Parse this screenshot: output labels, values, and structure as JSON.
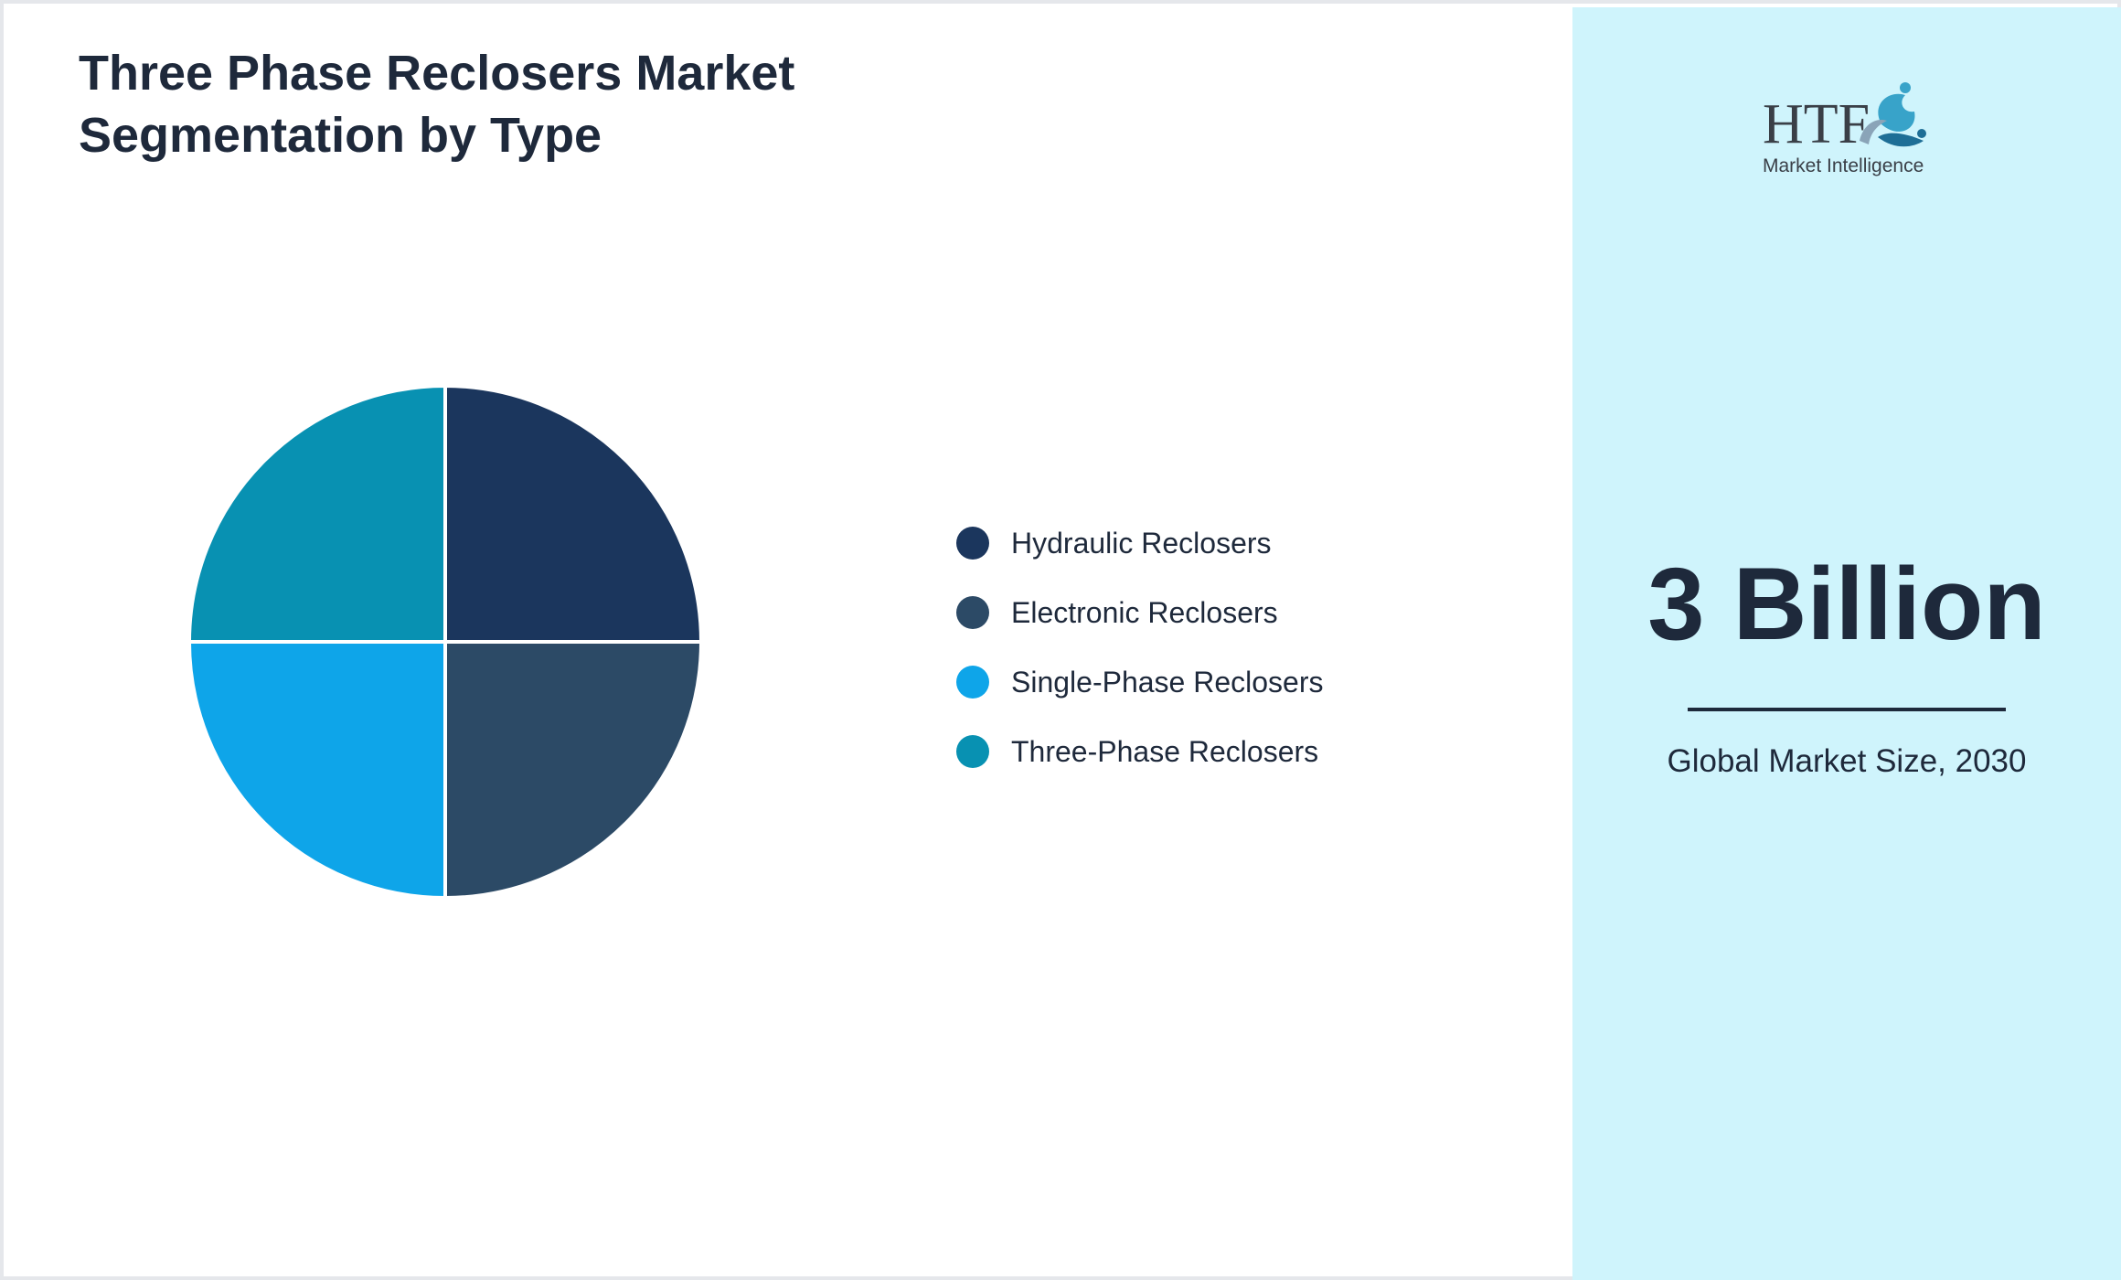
{
  "title": "Three Phase Reclosers Market Segmentation by Type",
  "chart_data": {
    "type": "pie",
    "title": "Three Phase Reclosers Market Segmentation by Type",
    "categories": [
      "Hydraulic Reclosers",
      "Electronic Reclosers",
      "Single-Phase Reclosers",
      "Three-Phase Reclosers"
    ],
    "values": [
      25,
      25,
      25,
      25
    ],
    "colors": [
      "#1b365d",
      "#2c4a66",
      "#0ea5e9",
      "#0891b2"
    ],
    "legend_position": "right"
  },
  "sidebar": {
    "logo_icon": "htf-logo-icon",
    "logo_text_top": "HTF",
    "logo_text_bottom": "Market Intelligence",
    "value": "3 Billion",
    "caption": "Global Market Size, 2030",
    "background": "#cff4fc"
  }
}
